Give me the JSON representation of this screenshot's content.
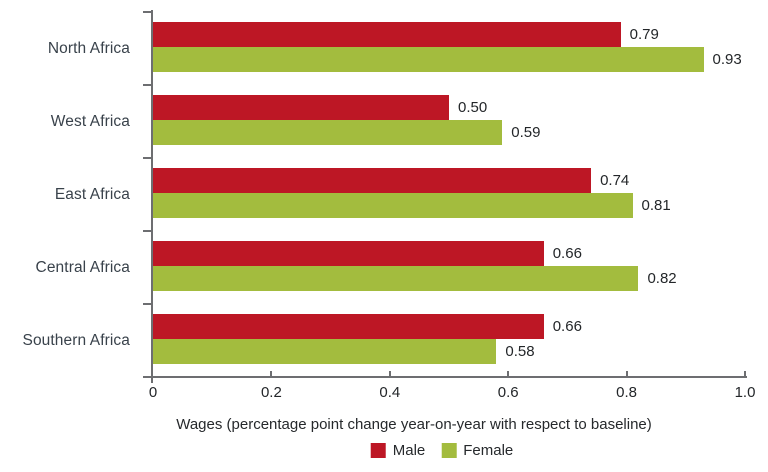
{
  "chart_data": {
    "type": "bar",
    "orientation": "horizontal",
    "title": "",
    "categories": [
      "North Africa",
      "West Africa",
      "East Africa",
      "Central Africa",
      "Southern Africa"
    ],
    "series": [
      {
        "name": "Male",
        "color": "#bd1725",
        "values": [
          0.79,
          0.5,
          0.74,
          0.66,
          0.66
        ]
      },
      {
        "name": "Female",
        "color": "#a3bc3e",
        "values": [
          0.93,
          0.59,
          0.81,
          0.82,
          0.58
        ]
      }
    ],
    "xlabel": "Wages (percentage point change year-on-year with respect to baseline)",
    "ylabel": "",
    "xlim": [
      0,
      1.0
    ],
    "x_ticks": [
      "0",
      "0.2",
      "0.4",
      "0.6",
      "0.8",
      "1.0"
    ],
    "value_labels": true,
    "value_decimals": 2,
    "grid": false,
    "legend_position": "bottom-center",
    "axis_color": "#6d6e71",
    "category_label_color": "#39424b",
    "text_color": "#232629"
  }
}
